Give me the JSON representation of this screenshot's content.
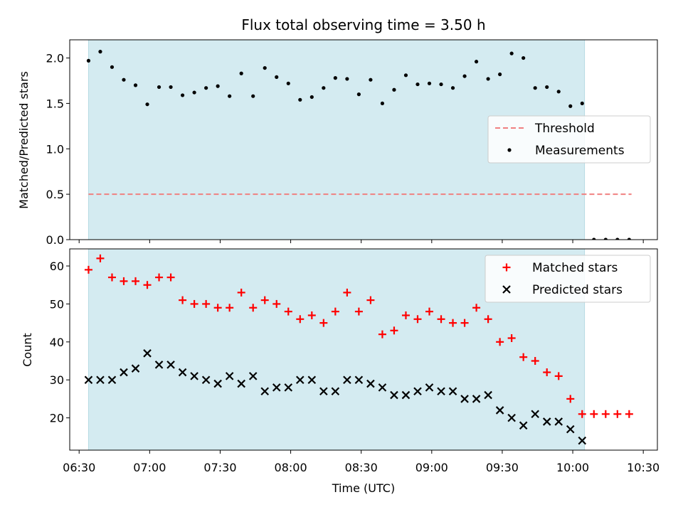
{
  "chart_data": [
    {
      "type": "scatter",
      "title": "Flux total observing time = 3.50 h",
      "ylabel": "Matched/Predicted stars",
      "xlabel": "",
      "xlim": [
        "06:26",
        "10:36"
      ],
      "ylim": [
        0,
        2.2
      ],
      "yticks": [
        0.0,
        0.5,
        1.0,
        1.5,
        2.0
      ],
      "ytick_labels": [
        "0.0",
        "0.5",
        "1.0",
        "1.5",
        "2.0"
      ],
      "xtick_positions": [
        "06:30",
        "07:00",
        "07:30",
        "08:00",
        "08:30",
        "09:00",
        "09:30",
        "10:00",
        "10:30"
      ],
      "shaded_span": [
        "06:34",
        "10:05"
      ],
      "shaded_color": "#d4ebf1",
      "legend_position": "center-right",
      "threshold": {
        "name": "Threshold",
        "value": 0.5,
        "x_range": [
          "06:34",
          "10:25"
        ],
        "color": "#f08080",
        "style": "dashed"
      },
      "series": [
        {
          "name": "Measurements",
          "color": "#000000",
          "marker": "dot",
          "x": [
            "06:34",
            "06:39",
            "06:44",
            "06:49",
            "06:54",
            "06:59",
            "07:04",
            "07:09",
            "07:14",
            "07:19",
            "07:24",
            "07:29",
            "07:34",
            "07:39",
            "07:44",
            "07:49",
            "07:54",
            "07:59",
            "08:04",
            "08:09",
            "08:14",
            "08:19",
            "08:24",
            "08:29",
            "08:34",
            "08:39",
            "08:44",
            "08:49",
            "08:54",
            "08:59",
            "09:04",
            "09:09",
            "09:14",
            "09:19",
            "09:24",
            "09:29",
            "09:34",
            "09:39",
            "09:44",
            "09:49",
            "09:54",
            "09:59",
            "10:04",
            "10:09",
            "10:14",
            "10:19",
            "10:24"
          ],
          "y": [
            1.97,
            2.07,
            1.9,
            1.76,
            1.7,
            1.49,
            1.68,
            1.68,
            1.59,
            1.62,
            1.67,
            1.69,
            1.58,
            1.83,
            1.58,
            1.89,
            1.79,
            1.72,
            1.54,
            1.57,
            1.67,
            1.78,
            1.77,
            1.6,
            1.76,
            1.5,
            1.65,
            1.81,
            1.71,
            1.72,
            1.71,
            1.67,
            1.8,
            1.96,
            1.77,
            1.82,
            2.05,
            2.0,
            1.67,
            1.68,
            1.63,
            1.47,
            1.5,
            0,
            0,
            0,
            0
          ]
        }
      ]
    },
    {
      "type": "scatter",
      "title": "",
      "ylabel": "Count",
      "xlabel": "Time (UTC)",
      "xlim": [
        "06:26",
        "10:36"
      ],
      "ylim": [
        11.5,
        64.5
      ],
      "yticks": [
        20,
        30,
        40,
        50,
        60
      ],
      "ytick_labels": [
        "20",
        "30",
        "40",
        "50",
        "60"
      ],
      "xticks": [
        "06:30",
        "07:00",
        "07:30",
        "08:00",
        "08:30",
        "09:00",
        "09:30",
        "10:00",
        "10:30"
      ],
      "xtick_labels": [
        "06:30",
        "07:00",
        "07:30",
        "08:00",
        "08:30",
        "09:00",
        "09:30",
        "10:00",
        "10:30"
      ],
      "shaded_span": [
        "06:34",
        "10:05"
      ],
      "shaded_color": "#d4ebf1",
      "legend_position": "top-right",
      "series": [
        {
          "name": "Matched stars",
          "color": "#ff0000",
          "marker": "plus",
          "x": [
            "06:34",
            "06:39",
            "06:44",
            "06:49",
            "06:54",
            "06:59",
            "07:04",
            "07:09",
            "07:14",
            "07:19",
            "07:24",
            "07:29",
            "07:34",
            "07:39",
            "07:44",
            "07:49",
            "07:54",
            "07:59",
            "08:04",
            "08:09",
            "08:14",
            "08:19",
            "08:24",
            "08:29",
            "08:34",
            "08:39",
            "08:44",
            "08:49",
            "08:54",
            "08:59",
            "09:04",
            "09:09",
            "09:14",
            "09:19",
            "09:24",
            "09:29",
            "09:34",
            "09:39",
            "09:44",
            "09:49",
            "09:54",
            "09:59",
            "10:04",
            "10:09",
            "10:14",
            "10:19",
            "10:24"
          ],
          "y": [
            59,
            62,
            57,
            56,
            56,
            55,
            57,
            57,
            51,
            50,
            50,
            49,
            49,
            53,
            49,
            51,
            50,
            48,
            46,
            47,
            45,
            48,
            53,
            48,
            51,
            42,
            43,
            47,
            46,
            48,
            46,
            45,
            45,
            49,
            46,
            40,
            41,
            36,
            35,
            32,
            31,
            25,
            21,
            21,
            21,
            21,
            21
          ]
        },
        {
          "name": "Predicted stars",
          "color": "#000000",
          "marker": "x",
          "x": [
            "06:34",
            "06:39",
            "06:44",
            "06:49",
            "06:54",
            "06:59",
            "07:04",
            "07:09",
            "07:14",
            "07:19",
            "07:24",
            "07:29",
            "07:34",
            "07:39",
            "07:44",
            "07:49",
            "07:54",
            "07:59",
            "08:04",
            "08:09",
            "08:14",
            "08:19",
            "08:24",
            "08:29",
            "08:34",
            "08:39",
            "08:44",
            "08:49",
            "08:54",
            "08:59",
            "09:04",
            "09:09",
            "09:14",
            "09:19",
            "09:24",
            "09:29",
            "09:34",
            "09:39",
            "09:44",
            "09:49",
            "09:54",
            "09:59",
            "10:04"
          ],
          "y": [
            30,
            30,
            30,
            32,
            33,
            37,
            34,
            34,
            32,
            31,
            30,
            29,
            31,
            29,
            31,
            27,
            28,
            28,
            30,
            30,
            27,
            27,
            30,
            30,
            29,
            28,
            26,
            26,
            27,
            28,
            27,
            27,
            25,
            25,
            26,
            22,
            20,
            18,
            21,
            19,
            19,
            17,
            14
          ]
        }
      ]
    }
  ]
}
